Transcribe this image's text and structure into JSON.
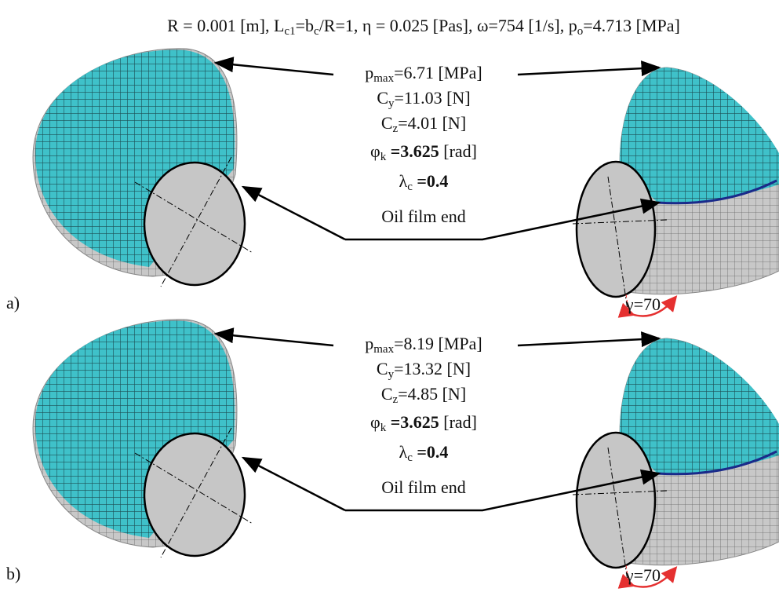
{
  "header": [
    {
      "t": "R = 0.001 [m], L"
    },
    {
      "t": "c1",
      "sub": true
    },
    {
      "t": "=b"
    },
    {
      "t": "c",
      "sub": true
    },
    {
      "t": "/R=1,  η = 0.025 [Pas], ω=754 [1/s], p"
    },
    {
      "t": "o",
      "sub": true
    },
    {
      "t": "=4.713 [MPa]"
    }
  ],
  "panels": [
    {
      "label": "a)",
      "lines": [
        [
          {
            "t": "p"
          },
          {
            "t": "max",
            "sub": true
          },
          {
            "t": "=6.71 [MPa]"
          }
        ],
        [
          {
            "t": "C"
          },
          {
            "t": "y",
            "sub": true
          },
          {
            "t": "=11.03 [N]"
          }
        ],
        [
          {
            "t": "C"
          },
          {
            "t": "z",
            "sub": true
          },
          {
            "t": "=4.01 [N]"
          }
        ],
        [
          {
            "t": "φ"
          },
          {
            "t": "k",
            "sub": true
          },
          {
            "t": " =3.625",
            "bold": true
          },
          {
            "t": " [rad]"
          }
        ],
        [
          {
            "t": "λ"
          },
          {
            "t": "c",
            "sub": true
          },
          {
            "t": " =0.4",
            "bold": true
          }
        ]
      ],
      "oil": "Oil film end",
      "gamma": "γ=70"
    },
    {
      "label": "b)",
      "lines": [
        [
          {
            "t": "p"
          },
          {
            "t": "max",
            "sub": true
          },
          {
            "t": "=8.19 [MPa]"
          }
        ],
        [
          {
            "t": "C"
          },
          {
            "t": "y",
            "sub": true
          },
          {
            "t": "=13.32 [N]"
          }
        ],
        [
          {
            "t": "C"
          },
          {
            "t": "z",
            "sub": true
          },
          {
            "t": "=4.85 [N]"
          }
        ],
        [
          {
            "t": "φ"
          },
          {
            "t": "k",
            "sub": true
          },
          {
            "t": " =3.625",
            "bold": true
          },
          {
            "t": " [rad]"
          }
        ],
        [
          {
            "t": "λ"
          },
          {
            "t": "c",
            "sub": true
          },
          {
            "t": " =0.4",
            "bold": true
          }
        ]
      ],
      "oil": "Oil film end",
      "gamma": "γ=70"
    }
  ]
}
